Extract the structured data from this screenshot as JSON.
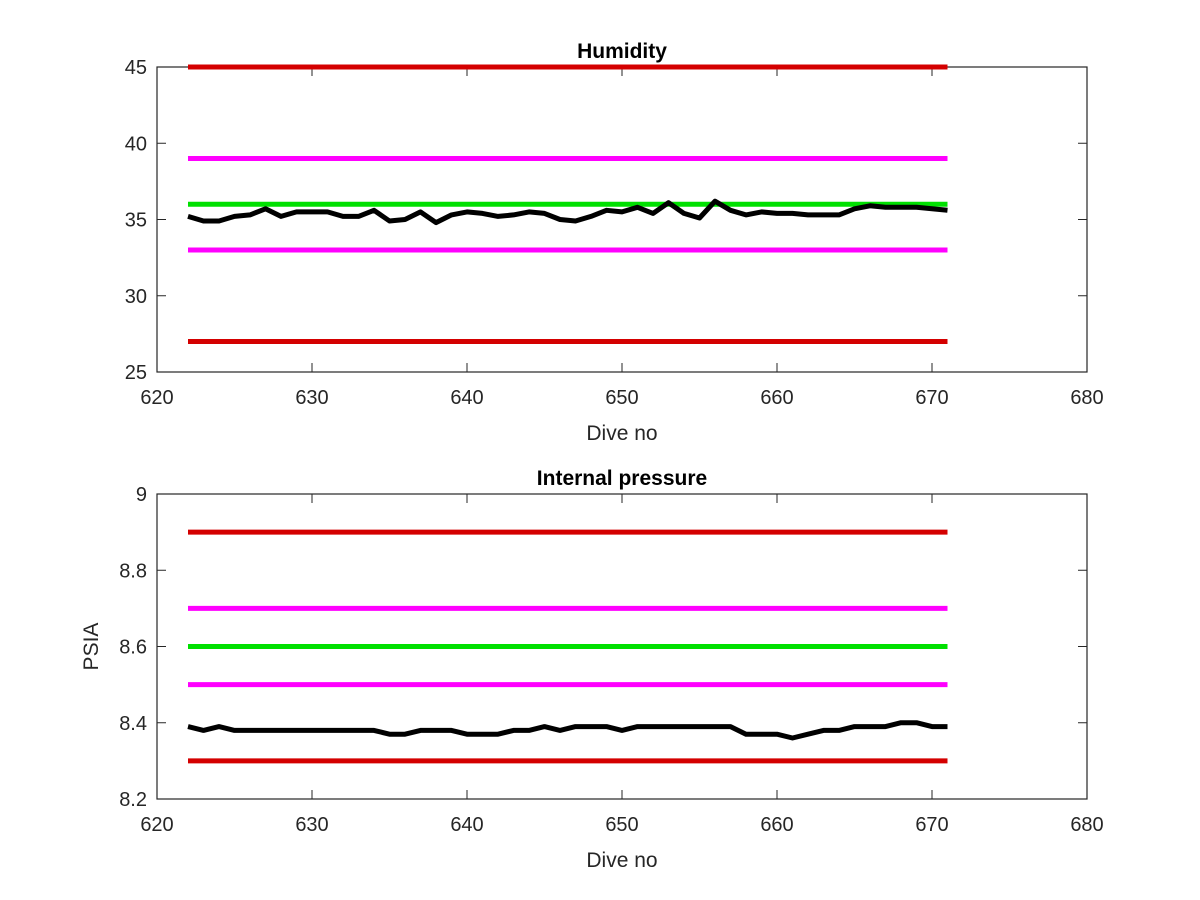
{
  "chart_data": [
    {
      "type": "line",
      "title": "Humidity",
      "xlabel": "Dive no",
      "ylabel": "",
      "xlim": [
        620,
        680
      ],
      "ylim": [
        25,
        45
      ],
      "xticks": [
        "620",
        "630",
        "640",
        "650",
        "660",
        "670",
        "680"
      ],
      "yticks": [
        "25",
        "30",
        "35",
        "40",
        "45"
      ],
      "grid": false,
      "series": [
        {
          "color": "#d40000",
          "x": [
            622,
            671
          ],
          "y": [
            45,
            45
          ]
        },
        {
          "color": "#ff00ff",
          "x": [
            622,
            671
          ],
          "y": [
            39,
            39
          ]
        },
        {
          "color": "#00e000",
          "x": [
            622,
            671
          ],
          "y": [
            36,
            36
          ]
        },
        {
          "color": "#ff00ff",
          "x": [
            622,
            671
          ],
          "y": [
            33,
            33
          ]
        },
        {
          "color": "#d40000",
          "x": [
            622,
            671
          ],
          "y": [
            27,
            27
          ]
        },
        {
          "color": "#000000",
          "x": [
            622,
            623,
            624,
            625,
            626,
            627,
            628,
            629,
            630,
            631,
            632,
            633,
            634,
            635,
            636,
            637,
            638,
            639,
            640,
            641,
            642,
            643,
            644,
            645,
            646,
            647,
            648,
            649,
            650,
            651,
            652,
            653,
            654,
            655,
            656,
            657,
            658,
            659,
            660,
            661,
            662,
            663,
            664,
            665,
            666,
            667,
            668,
            669,
            670,
            671
          ],
          "y": [
            35.2,
            34.9,
            34.9,
            35.2,
            35.3,
            35.7,
            35.2,
            35.5,
            35.5,
            35.5,
            35.2,
            35.2,
            35.6,
            34.9,
            35.0,
            35.5,
            34.8,
            35.3,
            35.5,
            35.4,
            35.2,
            35.3,
            35.5,
            35.4,
            35.0,
            34.9,
            35.2,
            35.6,
            35.5,
            35.8,
            35.4,
            36.1,
            35.4,
            35.1,
            36.2,
            35.6,
            35.3,
            35.5,
            35.4,
            35.4,
            35.3,
            35.3,
            35.3,
            35.7,
            35.9,
            35.8,
            35.8,
            35.8,
            35.7,
            35.6
          ]
        }
      ]
    },
    {
      "type": "line",
      "title": "Internal pressure",
      "xlabel": "Dive no",
      "ylabel": "PSIA",
      "xlim": [
        620,
        680
      ],
      "ylim": [
        8.2,
        9
      ],
      "xticks": [
        "620",
        "630",
        "640",
        "650",
        "660",
        "670",
        "680"
      ],
      "yticks": [
        "8.2",
        "8.4",
        "8.6",
        "8.8",
        "9"
      ],
      "grid": false,
      "series": [
        {
          "color": "#d40000",
          "x": [
            622,
            671
          ],
          "y": [
            8.9,
            8.9
          ]
        },
        {
          "color": "#ff00ff",
          "x": [
            622,
            671
          ],
          "y": [
            8.7,
            8.7
          ]
        },
        {
          "color": "#00e000",
          "x": [
            622,
            671
          ],
          "y": [
            8.6,
            8.6
          ]
        },
        {
          "color": "#ff00ff",
          "x": [
            622,
            671
          ],
          "y": [
            8.5,
            8.5
          ]
        },
        {
          "color": "#d40000",
          "x": [
            622,
            671
          ],
          "y": [
            8.3,
            8.3
          ]
        },
        {
          "color": "#000000",
          "x": [
            622,
            623,
            624,
            625,
            626,
            627,
            628,
            629,
            630,
            631,
            632,
            633,
            634,
            635,
            636,
            637,
            638,
            639,
            640,
            641,
            642,
            643,
            644,
            645,
            646,
            647,
            648,
            649,
            650,
            651,
            652,
            653,
            654,
            655,
            656,
            657,
            658,
            659,
            660,
            661,
            662,
            663,
            664,
            665,
            666,
            667,
            668,
            669,
            670,
            671
          ],
          "y": [
            8.39,
            8.38,
            8.39,
            8.38,
            8.38,
            8.38,
            8.38,
            8.38,
            8.38,
            8.38,
            8.38,
            8.38,
            8.38,
            8.37,
            8.37,
            8.38,
            8.38,
            8.38,
            8.37,
            8.37,
            8.37,
            8.38,
            8.38,
            8.39,
            8.38,
            8.39,
            8.39,
            8.39,
            8.38,
            8.39,
            8.39,
            8.39,
            8.39,
            8.39,
            8.39,
            8.39,
            8.37,
            8.37,
            8.37,
            8.36,
            8.37,
            8.38,
            8.38,
            8.39,
            8.39,
            8.39,
            8.4,
            8.4,
            8.39,
            8.39
          ]
        }
      ]
    }
  ]
}
